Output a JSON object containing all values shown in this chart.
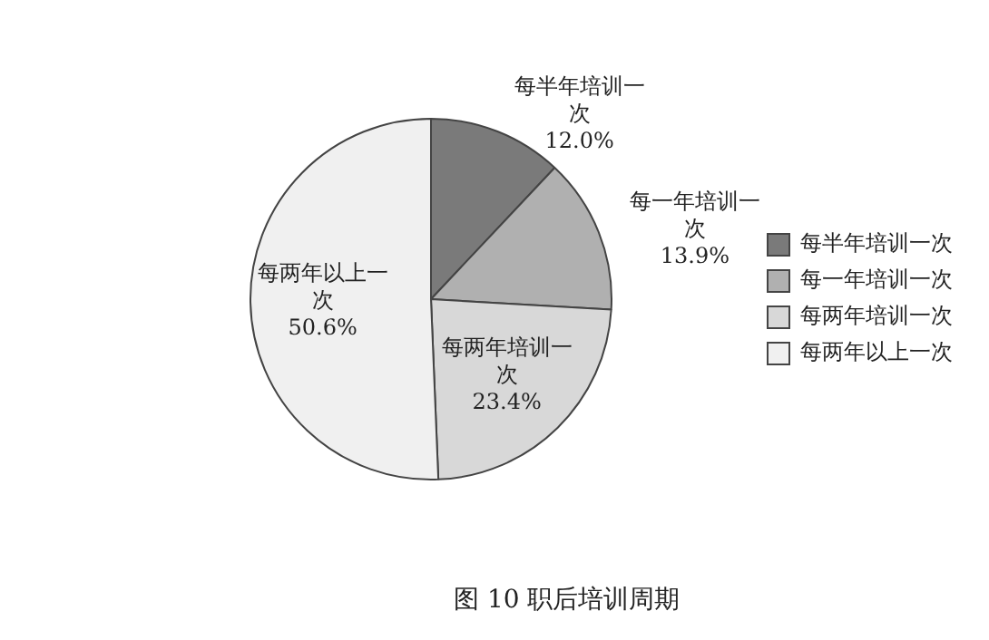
{
  "chart_data": {
    "type": "pie",
    "categories": [
      "每半年培训一次",
      "每一年培训一次",
      "每两年培训一次",
      "每两年以上一次"
    ],
    "values": [
      12.0,
      13.9,
      23.4,
      50.6
    ],
    "value_labels": [
      "12.0%",
      "13.9%",
      "23.4%",
      "50.6%"
    ],
    "colors": [
      "#7a7a7a",
      "#b0b0b0",
      "#d8d8d8",
      "#f0f0f0"
    ],
    "legend": "right",
    "annotations": [
      "图 10 职后培训周期"
    ]
  }
}
